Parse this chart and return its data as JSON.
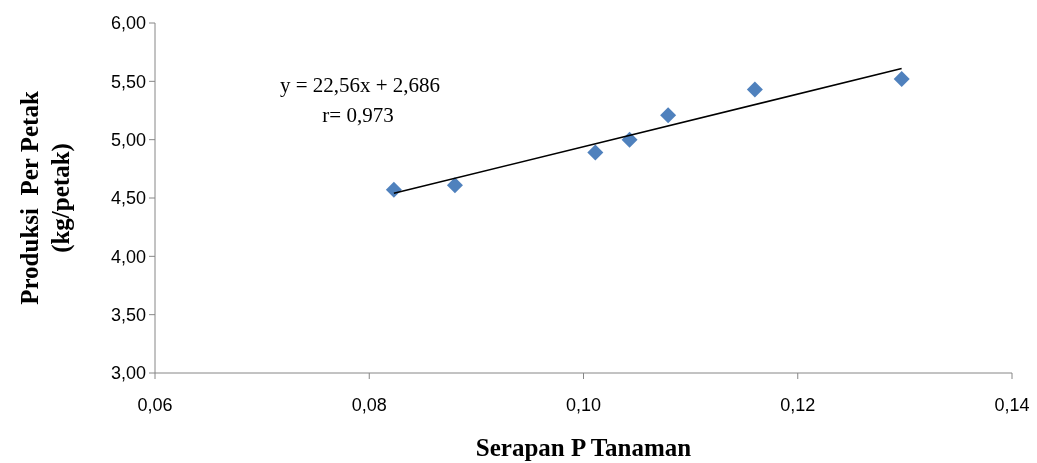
{
  "chart_data": {
    "type": "scatter",
    "xlabel": "Serapan P Tanaman",
    "ylabel": "Produksi  Per Petak\n(kg/petak)",
    "xlim": [
      0.06,
      0.14
    ],
    "xticks": [
      {
        "value": 0.06,
        "label": "0,06"
      },
      {
        "value": 0.08,
        "label": "0,08"
      },
      {
        "value": 0.1,
        "label": "0,10"
      },
      {
        "value": 0.12,
        "label": "0,12"
      },
      {
        "value": 0.14,
        "label": "0,14"
      }
    ],
    "ylim": [
      3,
      6
    ],
    "yticks": [
      {
        "value": 3,
        "label": "3,00"
      },
      {
        "value": 3.5,
        "label": "3,50"
      },
      {
        "value": 4,
        "label": "4,00"
      },
      {
        "value": 4.5,
        "label": "4,50"
      },
      {
        "value": 5,
        "label": "5,00"
      },
      {
        "value": 5.5,
        "label": "5,50"
      },
      {
        "value": 6,
        "label": "6,00"
      }
    ],
    "marker": "diamond",
    "series": [
      {
        "color": "#4f81bd",
        "x": [
          0.0823,
          0.088,
          0.1011,
          0.1043,
          0.1079,
          0.116,
          0.1297
        ],
        "values": [
          4.57,
          4.61,
          4.89,
          5.0,
          5.21,
          5.43,
          5.52
        ]
      },
      {
        "type": "line",
        "color": "#000000",
        "marker": "none",
        "x": [
          0.0823,
          0.1297
        ],
        "values": [
          4.54,
          5.61
        ]
      }
    ],
    "annotations": [
      "y = 22,56x + 2,686",
      "r= 0,973"
    ]
  }
}
